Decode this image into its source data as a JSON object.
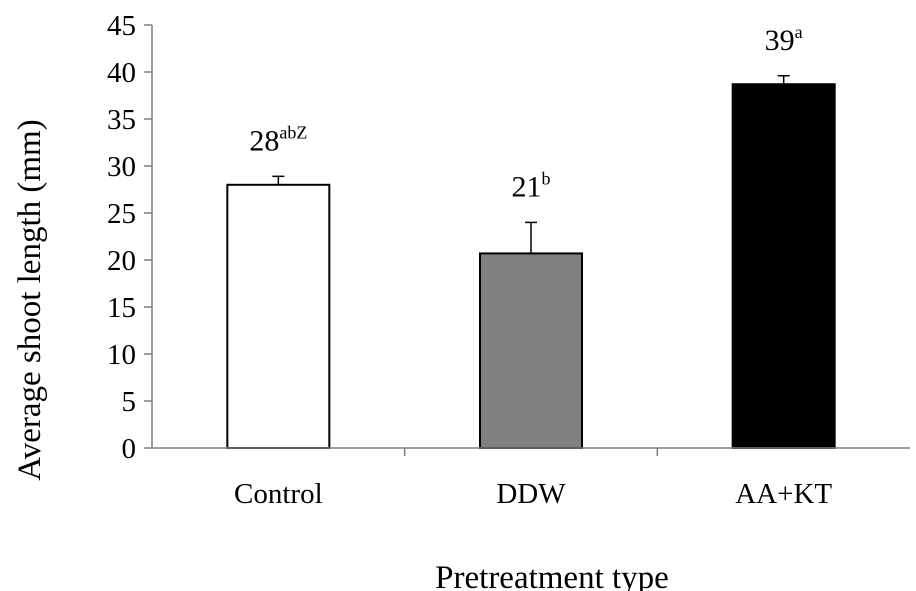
{
  "chart_data": {
    "type": "bar",
    "xlabel": "Pretreatment type",
    "ylabel": "Average shoot length (mm)",
    "ylim": [
      0,
      45
    ],
    "yticks": [
      0,
      5,
      10,
      15,
      20,
      25,
      30,
      35,
      40,
      45
    ],
    "categories": [
      "Control",
      "DDW",
      "AA+KT"
    ],
    "values": [
      28,
      20.7,
      38.7
    ],
    "errors": [
      0.9,
      3.3,
      0.9
    ],
    "labels": [
      {
        "value": "28",
        "superscript": "abZ"
      },
      {
        "value": "21",
        "superscript": "b"
      },
      {
        "value": "39",
        "superscript": "a"
      }
    ],
    "colors": [
      "#ffffff",
      "#808080",
      "#000000"
    ],
    "grid": false,
    "legend": "none"
  }
}
